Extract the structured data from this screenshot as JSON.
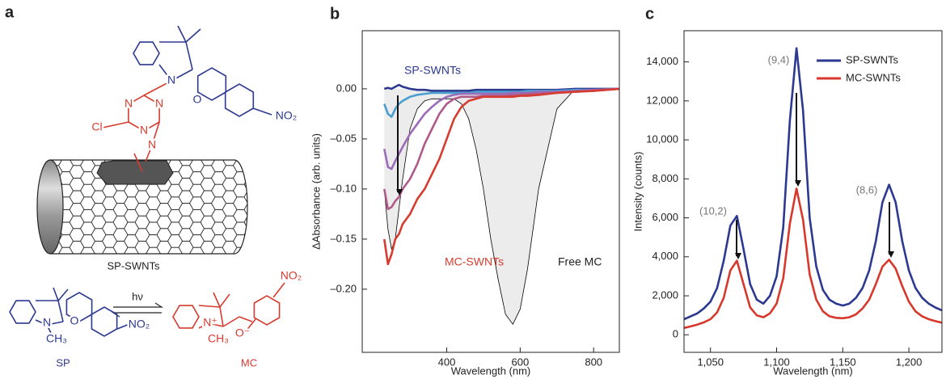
{
  "panel_a": {
    "label": "a",
    "top_atoms": [
      "Cl",
      "N",
      "N",
      "N",
      "N",
      "O",
      "NO₂",
      "N"
    ],
    "caption": "SP-SWNTs",
    "scheme": {
      "light": "hν",
      "sp_label": "SP",
      "mc_label": "MC",
      "sp_atoms": [
        "N",
        "CH₃",
        "O",
        "NO₂"
      ],
      "mc_atoms": [
        "N⁺",
        "CH₃",
        "O⁻",
        "NO₂"
      ]
    }
  },
  "chart_data": [
    {
      "type": "line",
      "panel_label": "b",
      "xlabel": "Wavelength (nm)",
      "ylabel": "ΔAbsorbance (arb. units)",
      "x": [
        230,
        240,
        250,
        260,
        270,
        280,
        300,
        320,
        340,
        360,
        380,
        400,
        420,
        440,
        460,
        480,
        500,
        520,
        540,
        560,
        580,
        600,
        620,
        650,
        700,
        750,
        800,
        870
      ],
      "xlim": [
        170,
        870
      ],
      "xticks": [
        400,
        600,
        800
      ],
      "ylim": [
        -0.263,
        0.058
      ],
      "yticks": [
        {
          "value": 0,
          "label": "0.00"
        },
        {
          "value": -0.05,
          "label": "–0.05"
        },
        {
          "value": -0.1,
          "label": "–0.10"
        },
        {
          "value": -0.15,
          "label": "–0.15"
        },
        {
          "value": -0.2,
          "label": "–0.20"
        }
      ],
      "series": [
        {
          "name": "Free MC",
          "color": "#000000",
          "fill": "#ececec",
          "values": [
            -0.1,
            -0.14,
            -0.16,
            -0.15,
            -0.12,
            -0.09,
            -0.04,
            -0.02,
            -0.012,
            -0.01,
            -0.01,
            -0.01,
            -0.01,
            -0.015,
            -0.03,
            -0.06,
            -0.1,
            -0.15,
            -0.19,
            -0.225,
            -0.235,
            -0.22,
            -0.18,
            -0.1,
            -0.02,
            0,
            0,
            0
          ]
        },
        {
          "name": "SP-SWNTs",
          "color": "#2b3990",
          "values": [
            0,
            0.001,
            0,
            0.002,
            0.004,
            0.002,
            0,
            -0.001,
            -0.001,
            -0.002,
            -0.002,
            -0.002,
            -0.002,
            -0.002,
            -0.002,
            -0.001,
            -0.001,
            -0.001,
            -0.001,
            -0.001,
            -0.001,
            -0.001,
            -0.001,
            -0.001,
            -0.001,
            0,
            0,
            0
          ]
        },
        {
          "color": "#4a9fd0",
          "values": [
            -0.015,
            -0.025,
            -0.028,
            -0.02,
            -0.015,
            -0.012,
            -0.008,
            -0.006,
            -0.005,
            -0.004,
            -0.004,
            -0.004,
            -0.004,
            -0.004,
            -0.004,
            -0.003,
            -0.003,
            -0.003,
            -0.003,
            -0.003,
            -0.003,
            -0.003,
            -0.002,
            -0.002,
            -0.002,
            -0.001,
            -0.001,
            0
          ]
        },
        {
          "color": "#9b6bb8",
          "values": [
            -0.06,
            -0.078,
            -0.08,
            -0.072,
            -0.065,
            -0.058,
            -0.045,
            -0.035,
            -0.025,
            -0.018,
            -0.012,
            -0.008,
            -0.006,
            -0.005,
            -0.005,
            -0.005,
            -0.005,
            -0.005,
            -0.005,
            -0.005,
            -0.004,
            -0.004,
            -0.004,
            -0.003,
            -0.003,
            -0.002,
            -0.001,
            0
          ]
        },
        {
          "color": "#b05a8a",
          "values": [
            -0.1,
            -0.12,
            -0.118,
            -0.112,
            -0.108,
            -0.1,
            -0.09,
            -0.075,
            -0.055,
            -0.04,
            -0.025,
            -0.015,
            -0.01,
            -0.008,
            -0.008,
            -0.008,
            -0.007,
            -0.007,
            -0.007,
            -0.007,
            -0.006,
            -0.006,
            -0.005,
            -0.005,
            -0.004,
            -0.003,
            -0.002,
            0
          ]
        },
        {
          "name": "MC-SWNTs",
          "color": "#d63c2f",
          "values": [
            -0.15,
            -0.175,
            -0.165,
            -0.15,
            -0.145,
            -0.135,
            -0.125,
            -0.11,
            -0.1,
            -0.085,
            -0.07,
            -0.05,
            -0.03,
            -0.018,
            -0.012,
            -0.01,
            -0.008,
            -0.008,
            -0.008,
            -0.008,
            -0.008,
            -0.007,
            -0.007,
            -0.006,
            -0.004,
            -0.003,
            -0.002,
            0
          ]
        }
      ]
    },
    {
      "type": "line",
      "panel_label": "c",
      "xlabel": "Wavelength (nm)",
      "ylabel": "Intensity (counts)",
      "x": [
        1030,
        1035,
        1040,
        1045,
        1050,
        1055,
        1060,
        1065,
        1070,
        1075,
        1080,
        1085,
        1090,
        1095,
        1100,
        1105,
        1110,
        1115,
        1120,
        1125,
        1130,
        1135,
        1140,
        1145,
        1150,
        1155,
        1160,
        1165,
        1170,
        1175,
        1180,
        1185,
        1190,
        1195,
        1200,
        1205,
        1210,
        1215,
        1220,
        1225
      ],
      "xlim": [
        1030,
        1225
      ],
      "xticks": [
        {
          "value": 1050,
          "label": "1,050"
        },
        {
          "value": 1100,
          "label": "1,100"
        },
        {
          "value": 1150,
          "label": "1,150"
        },
        {
          "value": 1200,
          "label": "1,200"
        }
      ],
      "ylim": [
        -900,
        15600
      ],
      "yticks": [
        0,
        {
          "value": 2000,
          "label": "2,000"
        },
        {
          "value": 4000,
          "label": "4,000"
        },
        {
          "value": 6000,
          "label": "6,000"
        },
        {
          "value": 8000,
          "label": "8,000"
        },
        {
          "value": 10000,
          "label": "10,000"
        },
        {
          "value": 12000,
          "label": "12,000"
        },
        {
          "value": 14000,
          "label": "14,000"
        }
      ],
      "legend": "upper right",
      "annotations": [
        "(10,2)",
        "(9,4)",
        "(8,6)"
      ],
      "series": [
        {
          "name": "SP-SWNTs",
          "color": "#2b3990",
          "values": [
            800,
            950,
            1100,
            1350,
            1700,
            2400,
            3800,
            5600,
            6100,
            4400,
            2600,
            1800,
            1600,
            2000,
            3000,
            5500,
            11000,
            14700,
            11500,
            6000,
            3500,
            2300,
            1800,
            1600,
            1500,
            1600,
            1900,
            2400,
            3300,
            4800,
            6800,
            7700,
            6800,
            4800,
            3300,
            2400,
            1900,
            1600,
            1400,
            1250
          ]
        },
        {
          "name": "MC-SWNTs",
          "color": "#d7382b",
          "values": [
            350,
            430,
            520,
            640,
            800,
            1150,
            1900,
            3300,
            3800,
            2600,
            1400,
            1000,
            900,
            1100,
            1600,
            2900,
            5700,
            7500,
            5900,
            3100,
            1800,
            1200,
            950,
            870,
            850,
            900,
            1050,
            1350,
            1800,
            2600,
            3500,
            3850,
            3400,
            2500,
            1700,
            1200,
            950,
            800,
            700,
            620
          ]
        }
      ]
    }
  ]
}
